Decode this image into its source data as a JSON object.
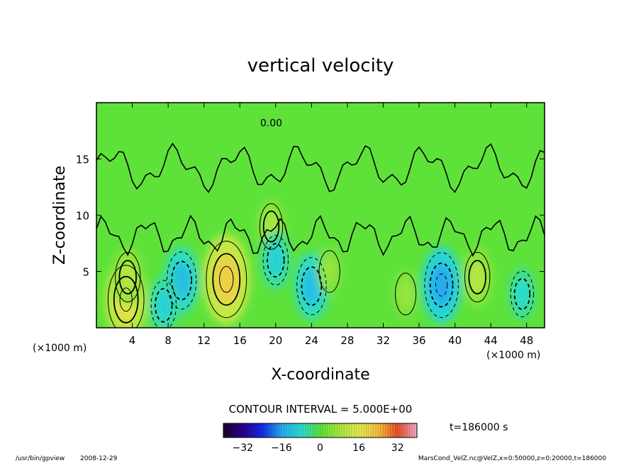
{
  "chart_data": {
    "type": "heatmap",
    "title": "vertical velocity",
    "xlabel": "X-coordinate",
    "ylabel": "Z-coordinate",
    "x_unit_left": "(×1000 m)",
    "x_unit_right": "(×1000 m)",
    "xlim": [
      0,
      50
    ],
    "ylim": [
      0,
      20
    ],
    "x_ticks": [
      4,
      8,
      12,
      16,
      20,
      24,
      28,
      32,
      36,
      40,
      44,
      48
    ],
    "y_ticks": [
      5,
      10,
      15
    ],
    "contour_interval_text": "CONTOUR INTERVAL = 5.000E+00",
    "time_text": "t=186000 s",
    "zero_contour_label": "0.00",
    "colorbar": {
      "ticks": [
        -32,
        -16,
        0,
        16,
        32
      ],
      "range": [
        -40,
        40
      ]
    },
    "features": [
      {
        "x": 3.3,
        "z": 2.5,
        "w": 11,
        "kind": "updraft"
      },
      {
        "x": 3.5,
        "z": 4.5,
        "w": 6,
        "kind": "updraft"
      },
      {
        "x": 9.5,
        "z": 4.2,
        "w": -8,
        "kind": "downdraft"
      },
      {
        "x": 7.5,
        "z": 2.0,
        "w": -6,
        "kind": "downdraft"
      },
      {
        "x": 14.5,
        "z": 4.3,
        "w": 13,
        "kind": "updraft"
      },
      {
        "x": 19.5,
        "z": 9.0,
        "w": 5,
        "kind": "updraft"
      },
      {
        "x": 20.0,
        "z": 6.0,
        "w": -6,
        "kind": "downdraft"
      },
      {
        "x": 24.0,
        "z": 3.7,
        "w": -8,
        "kind": "downdraft"
      },
      {
        "x": 26.0,
        "z": 5.0,
        "w": 4,
        "kind": "updraft"
      },
      {
        "x": 34.5,
        "z": 3.0,
        "w": 4,
        "kind": "updraft"
      },
      {
        "x": 38.5,
        "z": 3.8,
        "w": -10,
        "kind": "downdraft"
      },
      {
        "x": 42.5,
        "z": 4.5,
        "w": 6,
        "kind": "updraft"
      },
      {
        "x": 47.5,
        "z": 3.0,
        "w": -5,
        "kind": "downdraft"
      }
    ]
  },
  "footer": {
    "program": "/usr/bin/gpview",
    "date": "2008-12-29",
    "source": "MarsCond_VelZ.nc@VelZ,x=0:50000,z=0:20000,t=186000"
  }
}
